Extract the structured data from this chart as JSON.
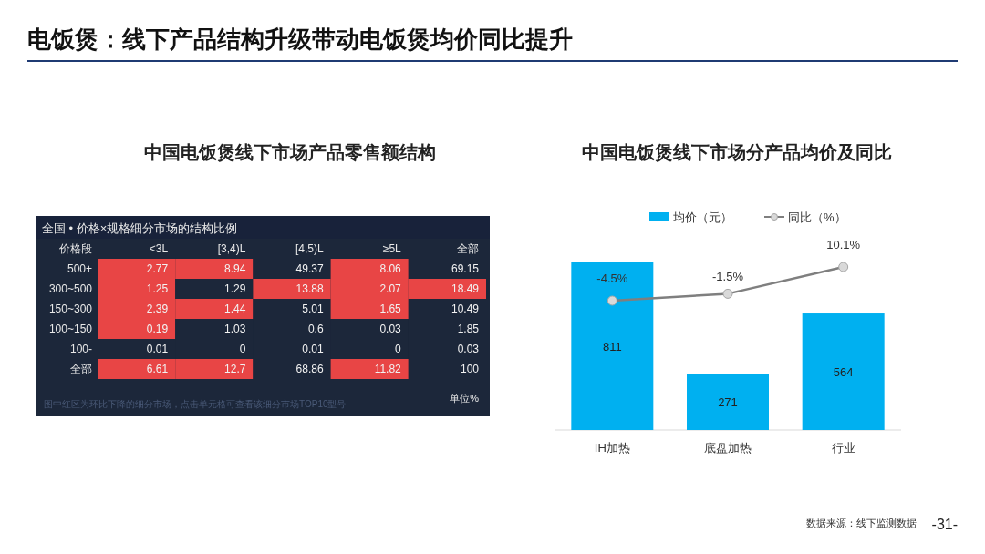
{
  "chart_data": [
    {
      "type": "heatmap",
      "title": "中国电饭煲线下市场产品零售额结构",
      "subtitle": "全国 • 价格×规格细分市场的结构比例",
      "ylabel": "价格段",
      "categories": [
        "<3L",
        "[3,4)L",
        "[4,5)L",
        "≥5L",
        "全部"
      ],
      "y_categories": [
        "500+",
        "300~500",
        "150~300",
        "100~150",
        "100-",
        "全部"
      ],
      "cells": [
        [
          2.77,
          8.94,
          49.37,
          8.06,
          69.15
        ],
        [
          1.25,
          1.29,
          13.88,
          2.07,
          18.49
        ],
        [
          2.39,
          1.44,
          5.01,
          1.65,
          10.49
        ],
        [
          0.19,
          1.03,
          0.6,
          0.03,
          1.85
        ],
        [
          0.01,
          0,
          0.01,
          0,
          0.03
        ],
        [
          6.61,
          12.7,
          68.86,
          11.82,
          100
        ]
      ],
      "colors": [
        [
          "#e84545",
          "#e84545",
          null,
          "#e84545",
          null
        ],
        [
          "#e84545",
          null,
          "#e84545",
          "#e84545",
          "#e84545"
        ],
        [
          "#e84545",
          "#e84545",
          null,
          "#e84545",
          null
        ],
        [
          "#e84545",
          null,
          null,
          null,
          null
        ],
        [
          null,
          null,
          null,
          null,
          null
        ],
        [
          "#e84545",
          "#e84545",
          null,
          "#e84545",
          null
        ]
      ],
      "data_labels": true,
      "annotations": [
        "电饭煲：线下产品结构升级带动电饭煲均价同比提升",
        "图中红区为环比下降的细分市场，点击单元格可查看该细分市场TOP10型号",
        "单位%"
      ]
    },
    {
      "type": "bar",
      "title": "中国电饭煲线下市场分产品均价及同比",
      "categories": [
        "IH加热",
        "底盘加热",
        "行业"
      ],
      "series": [
        {
          "name": "均价（元）",
          "type": "bar",
          "color": "#00b0f0",
          "values": [
            811,
            271,
            564
          ]
        },
        {
          "name": "同比（%）",
          "type": "line",
          "axis": "y2",
          "color": "#7f7f7f",
          "values": [
            -4.5,
            -1.5,
            10.1
          ],
          "value_labels": [
            "-4.5%",
            "-1.5%",
            "10.1%"
          ]
        }
      ],
      "data_labels": true,
      "marker": "circle",
      "legend": "top",
      "annotations": [
        "数据来源：线下监测数据",
        "-31-"
      ]
    }
  ]
}
